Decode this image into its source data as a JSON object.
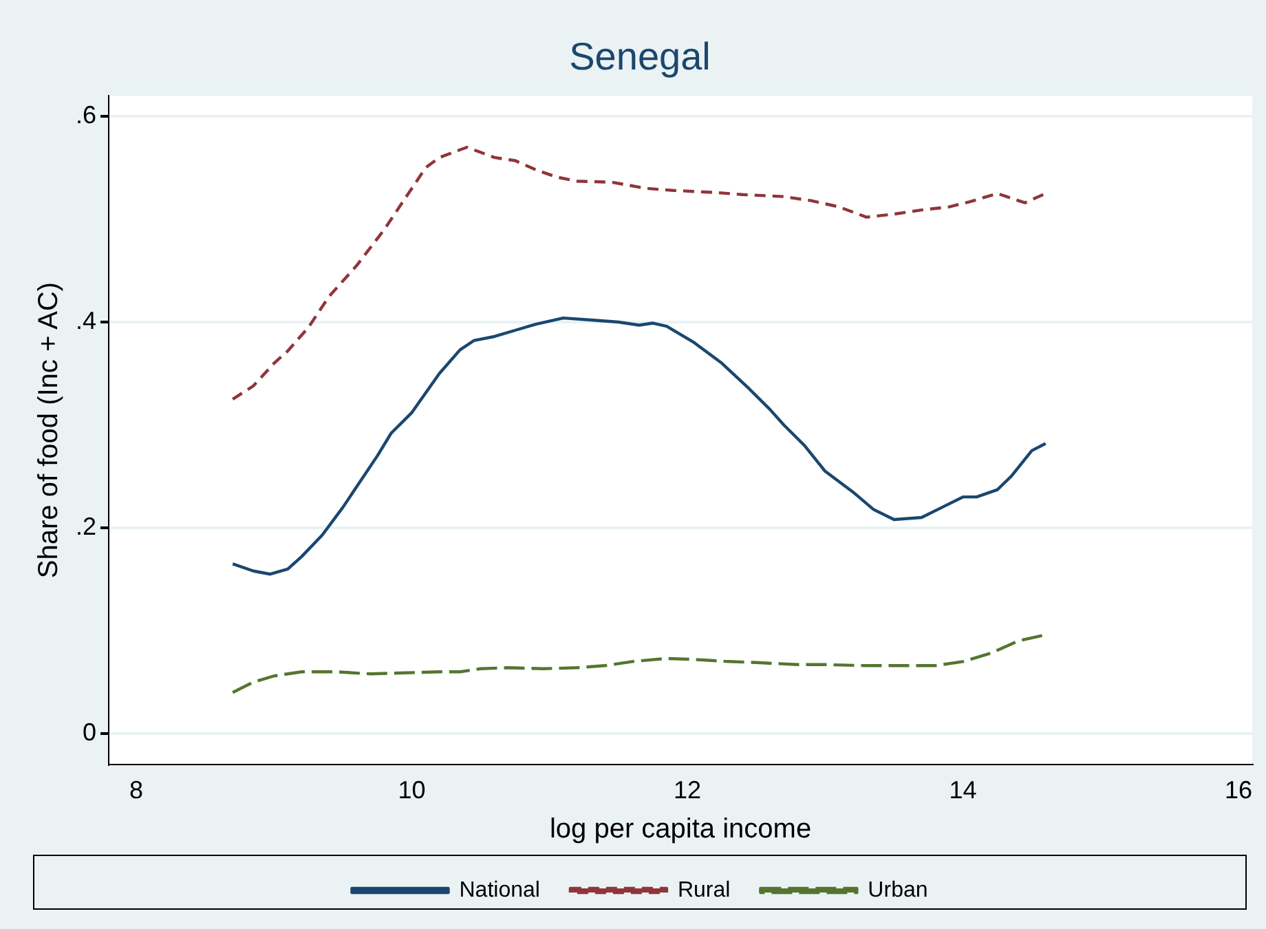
{
  "chart_data": {
    "type": "line",
    "title": "Senegal",
    "xlabel": "log per capita income",
    "ylabel": "Share of food (Inc + AC)",
    "xlim": [
      7.8,
      16.1
    ],
    "xticks": [
      8,
      10,
      12,
      14,
      16
    ],
    "ylim": [
      -0.03,
      0.62
    ],
    "yticks": [
      {
        "value": 0,
        "label": "0"
      },
      {
        "value": 0.2,
        "label": ".2"
      },
      {
        "value": 0.4,
        "label": ".4"
      },
      {
        "value": 0.6,
        "label": ".6"
      }
    ],
    "grid": "y",
    "legend": "bottom",
    "marker": "none",
    "series": [
      {
        "name": "National",
        "color": "#1a476f",
        "line_style": "solid",
        "x": [
          8.7,
          8.85,
          8.97,
          9.1,
          9.2,
          9.35,
          9.5,
          9.75,
          9.85,
          10.0,
          10.2,
          10.35,
          10.45,
          10.6,
          10.75,
          10.9,
          11.1,
          11.3,
          11.5,
          11.65,
          11.75,
          11.85,
          12.05,
          12.25,
          12.45,
          12.6,
          12.7,
          12.85,
          13.0,
          13.2,
          13.35,
          13.5,
          13.7,
          13.85,
          14.0,
          14.1,
          14.25,
          14.35,
          14.5,
          14.6
        ],
        "values": [
          0.165,
          0.158,
          0.155,
          0.16,
          0.172,
          0.193,
          0.22,
          0.27,
          0.292,
          0.312,
          0.35,
          0.373,
          0.382,
          0.386,
          0.392,
          0.398,
          0.404,
          0.402,
          0.4,
          0.397,
          0.399,
          0.396,
          0.38,
          0.36,
          0.335,
          0.315,
          0.3,
          0.28,
          0.255,
          0.235,
          0.218,
          0.208,
          0.21,
          0.22,
          0.23,
          0.23,
          0.237,
          0.25,
          0.275,
          0.282
        ]
      },
      {
        "name": "Rural",
        "color": "#90353b",
        "line_style": "dashed",
        "x": [
          8.7,
          8.85,
          9.0,
          9.1,
          9.25,
          9.4,
          9.6,
          9.8,
          10.0,
          10.1,
          10.2,
          10.4,
          10.6,
          10.75,
          10.9,
          11.05,
          11.2,
          11.45,
          11.7,
          11.9,
          12.2,
          12.4,
          12.7,
          12.9,
          13.1,
          13.3,
          13.5,
          13.7,
          13.9,
          14.05,
          14.25,
          14.45,
          14.6
        ],
        "values": [
          0.325,
          0.338,
          0.36,
          0.372,
          0.395,
          0.425,
          0.455,
          0.49,
          0.53,
          0.55,
          0.56,
          0.57,
          0.56,
          0.557,
          0.548,
          0.541,
          0.537,
          0.536,
          0.53,
          0.528,
          0.526,
          0.524,
          0.522,
          0.518,
          0.512,
          0.502,
          0.505,
          0.509,
          0.512,
          0.517,
          0.525,
          0.516,
          0.525
        ]
      },
      {
        "name": "Urban",
        "color": "#55752f",
        "line_style": "longdash",
        "x": [
          8.7,
          8.85,
          9.0,
          9.2,
          9.45,
          9.7,
          9.95,
          10.2,
          10.35,
          10.5,
          10.7,
          10.95,
          11.2,
          11.4,
          11.6,
          11.85,
          12.05,
          12.3,
          12.5,
          12.8,
          13.0,
          13.3,
          13.5,
          13.8,
          14.0,
          14.2,
          14.4,
          14.6
        ],
        "values": [
          0.04,
          0.05,
          0.056,
          0.06,
          0.06,
          0.058,
          0.059,
          0.06,
          0.06,
          0.063,
          0.064,
          0.063,
          0.064,
          0.066,
          0.07,
          0.073,
          0.072,
          0.07,
          0.069,
          0.067,
          0.067,
          0.066,
          0.066,
          0.066,
          0.07,
          0.078,
          0.09,
          0.096
        ]
      }
    ]
  }
}
